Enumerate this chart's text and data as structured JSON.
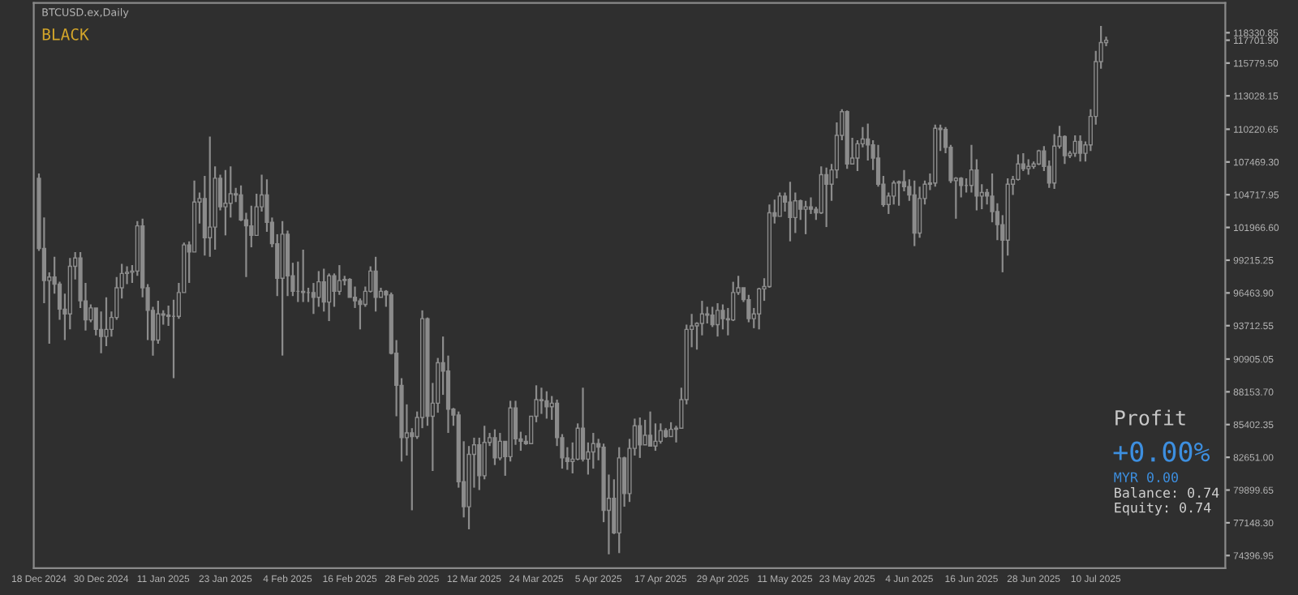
{
  "chart_data": {
    "type": "candlestick",
    "title": "BTCUSD.ex,Daily",
    "subtitle": "BLACK",
    "annotations": [
      "Profit",
      "+0.00%",
      "MYR 0.00",
      "Balance: 0.74",
      "Equity: 0.74"
    ],
    "color": "#8c8c8c",
    "grid": false,
    "xlim": [
      "2024-12-17",
      "2025-08-04"
    ],
    "xticks": [
      {
        "value": "2024-12-18",
        "label": "18 Dec 2024"
      },
      {
        "value": "2024-12-30",
        "label": "30 Dec 2024"
      },
      {
        "value": "2025-01-11",
        "label": "11 Jan 2025"
      },
      {
        "value": "2025-01-23",
        "label": "23 Jan 2025"
      },
      {
        "value": "2025-02-04",
        "label": "4 Feb 2025"
      },
      {
        "value": "2025-02-16",
        "label": "16 Feb 2025"
      },
      {
        "value": "2025-02-28",
        "label": "28 Feb 2025"
      },
      {
        "value": "2025-03-12",
        "label": "12 Mar 2025"
      },
      {
        "value": "2025-03-24",
        "label": "24 Mar 2025"
      },
      {
        "value": "2025-04-05",
        "label": "5 Apr 2025"
      },
      {
        "value": "2025-04-17",
        "label": "17 Apr 2025"
      },
      {
        "value": "2025-04-29",
        "label": "29 Apr 2025"
      },
      {
        "value": "2025-05-11",
        "label": "11 May 2025"
      },
      {
        "value": "2025-05-23",
        "label": "23 May 2025"
      },
      {
        "value": "2025-06-04",
        "label": "4 Jun 2025"
      },
      {
        "value": "2025-06-16",
        "label": "16 Jun 2025"
      },
      {
        "value": "2025-06-28",
        "label": "28 Jun 2025"
      },
      {
        "value": "2025-07-10",
        "label": "10 Jul 2025"
      }
    ],
    "ylim": [
      73330,
      120830
    ],
    "yticks": [
      {
        "value": 74396.95,
        "label": "74396.95"
      },
      {
        "value": 77148.3,
        "label": "77148.30"
      },
      {
        "value": 79899.65,
        "label": "79899.65"
      },
      {
        "value": 82651.0,
        "label": "82651.00"
      },
      {
        "value": 85402.35,
        "label": "85402.35"
      },
      {
        "value": 88153.7,
        "label": "88153.70"
      },
      {
        "value": 90905.05,
        "label": "90905.05"
      },
      {
        "value": 93712.55,
        "label": "93712.55"
      },
      {
        "value": 96463.9,
        "label": "96463.90"
      },
      {
        "value": 99215.25,
        "label": "99215.25"
      },
      {
        "value": 101966.6,
        "label": "101966.60"
      },
      {
        "value": 104717.95,
        "label": "104717.95"
      },
      {
        "value": 107469.3,
        "label": "107469.30"
      },
      {
        "value": 110220.65,
        "label": "110220.65"
      },
      {
        "value": 113028.15,
        "label": "113028.15"
      },
      {
        "value": 115779.5,
        "label": "115779.50"
      },
      {
        "value": 117701.9,
        "label": "117701.90"
      },
      {
        "value": 118330.85,
        "label": "118330.85"
      }
    ],
    "x": [
      "2024-12-18",
      "2024-12-19",
      "2024-12-20",
      "2024-12-21",
      "2024-12-22",
      "2024-12-23",
      "2024-12-24",
      "2024-12-25",
      "2024-12-26",
      "2024-12-27",
      "2024-12-28",
      "2024-12-29",
      "2024-12-30",
      "2024-12-31",
      "2025-01-01",
      "2025-01-02",
      "2025-01-03",
      "2025-01-04",
      "2025-01-05",
      "2025-01-06",
      "2025-01-07",
      "2025-01-08",
      "2025-01-09",
      "2025-01-10",
      "2025-01-11",
      "2025-01-12",
      "2025-01-13",
      "2025-01-14",
      "2025-01-15",
      "2025-01-16",
      "2025-01-17",
      "2025-01-18",
      "2025-01-19",
      "2025-01-20",
      "2025-01-21",
      "2025-01-22",
      "2025-01-23",
      "2025-01-24",
      "2025-01-25",
      "2025-01-26",
      "2025-01-27",
      "2025-01-28",
      "2025-01-29",
      "2025-01-30",
      "2025-01-31",
      "2025-02-01",
      "2025-02-02",
      "2025-02-03",
      "2025-02-04",
      "2025-02-05",
      "2025-02-06",
      "2025-02-07",
      "2025-02-08",
      "2025-02-09",
      "2025-02-10",
      "2025-02-11",
      "2025-02-12",
      "2025-02-13",
      "2025-02-14",
      "2025-02-15",
      "2025-02-16",
      "2025-02-17",
      "2025-02-18",
      "2025-02-19",
      "2025-02-20",
      "2025-02-21",
      "2025-02-22",
      "2025-02-23",
      "2025-02-24",
      "2025-02-25",
      "2025-02-26",
      "2025-02-27",
      "2025-02-28",
      "2025-03-01",
      "2025-03-02",
      "2025-03-03",
      "2025-03-04",
      "2025-03-05",
      "2025-03-06",
      "2025-03-07",
      "2025-03-08",
      "2025-03-09",
      "2025-03-10",
      "2025-03-11",
      "2025-03-12",
      "2025-03-13",
      "2025-03-14",
      "2025-03-15",
      "2025-03-16",
      "2025-03-17",
      "2025-03-18",
      "2025-03-19",
      "2025-03-20",
      "2025-03-21",
      "2025-03-22",
      "2025-03-23",
      "2025-03-24",
      "2025-03-25",
      "2025-03-26",
      "2025-03-27",
      "2025-03-28",
      "2025-03-29",
      "2025-03-30",
      "2025-03-31",
      "2025-04-01",
      "2025-04-02",
      "2025-04-03",
      "2025-04-04",
      "2025-04-05",
      "2025-04-06",
      "2025-04-07",
      "2025-04-08",
      "2025-04-09",
      "2025-04-10",
      "2025-04-11",
      "2025-04-12",
      "2025-04-13",
      "2025-04-14",
      "2025-04-15",
      "2025-04-16",
      "2025-04-17",
      "2025-04-18",
      "2025-04-19",
      "2025-04-20",
      "2025-04-21",
      "2025-04-22",
      "2025-04-23",
      "2025-04-24",
      "2025-04-25",
      "2025-04-26",
      "2025-04-27",
      "2025-04-28",
      "2025-04-29",
      "2025-04-30",
      "2025-05-01",
      "2025-05-02",
      "2025-05-03",
      "2025-05-04",
      "2025-05-05",
      "2025-05-06",
      "2025-05-07",
      "2025-05-08",
      "2025-05-09",
      "2025-05-10",
      "2025-05-11",
      "2025-05-12",
      "2025-05-13",
      "2025-05-14",
      "2025-05-15",
      "2025-05-16",
      "2025-05-17",
      "2025-05-18",
      "2025-05-19",
      "2025-05-20",
      "2025-05-21",
      "2025-05-22",
      "2025-05-23",
      "2025-05-24",
      "2025-05-25",
      "2025-05-26",
      "2025-05-27",
      "2025-05-28",
      "2025-05-29",
      "2025-05-30",
      "2025-05-31",
      "2025-06-01",
      "2025-06-02",
      "2025-06-03",
      "2025-06-04",
      "2025-06-05",
      "2025-06-06",
      "2025-06-07",
      "2025-06-08",
      "2025-06-09",
      "2025-06-10",
      "2025-06-11",
      "2025-06-12",
      "2025-06-13",
      "2025-06-14",
      "2025-06-15",
      "2025-06-16",
      "2025-06-17",
      "2025-06-18",
      "2025-06-19",
      "2025-06-20",
      "2025-06-21",
      "2025-06-22",
      "2025-06-23",
      "2025-06-24",
      "2025-06-25",
      "2025-06-26",
      "2025-06-27",
      "2025-06-28",
      "2025-06-29",
      "2025-06-30",
      "2025-07-01",
      "2025-07-02",
      "2025-07-03",
      "2025-07-04",
      "2025-07-05",
      "2025-07-06",
      "2025-07-07",
      "2025-07-08",
      "2025-07-09",
      "2025-07-10",
      "2025-07-11",
      "2025-07-12"
    ],
    "ohlc": [
      [
        106100,
        106500,
        100000,
        100200
      ],
      [
        100200,
        102800,
        95600,
        97500
      ],
      [
        97500,
        98200,
        92200,
        97800
      ],
      [
        97800,
        99500,
        96400,
        97200
      ],
      [
        97200,
        97400,
        94200,
        95100
      ],
      [
        95100,
        96400,
        92500,
        94700
      ],
      [
        94700,
        99400,
        93400,
        98700
      ],
      [
        98700,
        99900,
        97600,
        99400
      ],
      [
        99400,
        99900,
        95200,
        95800
      ],
      [
        95800,
        97300,
        93300,
        94200
      ],
      [
        94200,
        95500,
        94000,
        95200
      ],
      [
        95200,
        95200,
        92900,
        93400
      ],
      [
        93400,
        94900,
        91400,
        92800
      ],
      [
        92800,
        96100,
        92000,
        93400
      ],
      [
        93400,
        94900,
        92800,
        94400
      ],
      [
        94400,
        97800,
        94200,
        96900
      ],
      [
        96900,
        98900,
        96000,
        98100
      ],
      [
        98100,
        98700,
        97200,
        98200
      ],
      [
        98200,
        98800,
        97300,
        98300
      ],
      [
        98300,
        102500,
        97900,
        102100
      ],
      [
        102100,
        102700,
        96100,
        96900
      ],
      [
        96900,
        97200,
        92500,
        95000
      ],
      [
        95000,
        95300,
        91200,
        92500
      ],
      [
        92500,
        95800,
        92200,
        94700
      ],
      [
        94700,
        95000,
        93800,
        94600
      ],
      [
        94600,
        95400,
        93700,
        94500
      ],
      [
        94500,
        95900,
        89300,
        94500
      ],
      [
        94500,
        97300,
        94300,
        96500
      ],
      [
        96500,
        100700,
        96500,
        100500
      ],
      [
        100500,
        100800,
        97300,
        99900
      ],
      [
        99900,
        105900,
        99900,
        104100
      ],
      [
        104100,
        104900,
        102300,
        104400
      ],
      [
        104400,
        106300,
        99600,
        101100
      ],
      [
        101100,
        109600,
        99500,
        102000
      ],
      [
        102000,
        107100,
        100100,
        106100
      ],
      [
        106100,
        106400,
        103400,
        103700
      ],
      [
        103700,
        106800,
        101300,
        104000
      ],
      [
        104000,
        107100,
        102800,
        104800
      ],
      [
        104800,
        105300,
        104100,
        104700
      ],
      [
        104700,
        105500,
        102500,
        102600
      ],
      [
        102600,
        103200,
        97800,
        102100
      ],
      [
        102100,
        103800,
        100300,
        101300
      ],
      [
        101300,
        104800,
        101300,
        103700
      ],
      [
        103700,
        106400,
        103300,
        104700
      ],
      [
        104700,
        106000,
        101600,
        102400
      ],
      [
        102400,
        102800,
        100300,
        100600
      ],
      [
        100600,
        101400,
        96200,
        97700
      ],
      [
        97700,
        102500,
        91200,
        101400
      ],
      [
        101400,
        101700,
        96200,
        97900
      ],
      [
        97900,
        99000,
        96200,
        96600
      ],
      [
        96600,
        99100,
        95700,
        96600
      ],
      [
        96600,
        100100,
        95700,
        96500
      ],
      [
        96500,
        96900,
        95700,
        96500
      ],
      [
        96500,
        97300,
        94700,
        96100
      ],
      [
        96100,
        98300,
        95300,
        97400
      ],
      [
        97400,
        98500,
        94900,
        95700
      ],
      [
        95700,
        98100,
        94100,
        97900
      ],
      [
        97900,
        98100,
        95300,
        96600
      ],
      [
        96600,
        98800,
        96300,
        97500
      ],
      [
        97500,
        97900,
        97100,
        97600
      ],
      [
        97600,
        97700,
        96100,
        96100
      ],
      [
        96100,
        97000,
        95200,
        95800
      ],
      [
        95800,
        96000,
        93400,
        95500
      ],
      [
        95500,
        97000,
        95300,
        96600
      ],
      [
        96600,
        98700,
        96500,
        98300
      ],
      [
        98300,
        99500,
        94900,
        96100
      ],
      [
        96100,
        96900,
        96100,
        96600
      ],
      [
        96600,
        96700,
        95300,
        96300
      ],
      [
        96300,
        96500,
        91300,
        91400
      ],
      [
        91400,
        92500,
        86100,
        88700
      ],
      [
        88700,
        89300,
        82300,
        84300
      ],
      [
        84300,
        87100,
        82800,
        84700
      ],
      [
        84700,
        85100,
        78200,
        84400
      ],
      [
        84400,
        86500,
        84200,
        86000
      ],
      [
        86000,
        95000,
        85100,
        94300
      ],
      [
        94300,
        94400,
        85300,
        86100
      ],
      [
        86100,
        88900,
        81500,
        87200
      ],
      [
        87200,
        91000,
        86400,
        90600
      ],
      [
        90600,
        92800,
        87900,
        89900
      ],
      [
        89900,
        91200,
        84700,
        86700
      ],
      [
        86700,
        86800,
        85300,
        86200
      ],
      [
        86200,
        86500,
        80100,
        80600
      ],
      [
        80600,
        84000,
        77600,
        78500
      ],
      [
        78500,
        83600,
        76600,
        82900
      ],
      [
        82900,
        84300,
        80100,
        83700
      ],
      [
        83700,
        84300,
        79900,
        81100
      ],
      [
        81100,
        85300,
        80800,
        83900
      ],
      [
        83900,
        84700,
        83600,
        84300
      ],
      [
        84300,
        85000,
        82000,
        82600
      ],
      [
        82600,
        84700,
        82400,
        84000
      ],
      [
        84000,
        84000,
        81100,
        82700
      ],
      [
        82700,
        87400,
        82300,
        86800
      ],
      [
        86800,
        87400,
        83700,
        84200
      ],
      [
        84200,
        84800,
        83200,
        84000
      ],
      [
        84000,
        84500,
        83700,
        83800
      ],
      [
        83800,
        86100,
        83800,
        86100
      ],
      [
        86100,
        88700,
        85600,
        87500
      ],
      [
        87500,
        88500,
        86300,
        87400
      ],
      [
        87400,
        88200,
        85900,
        86900
      ],
      [
        86900,
        87800,
        85800,
        87200
      ],
      [
        87200,
        87500,
        83600,
        84300
      ],
      [
        84300,
        84600,
        81700,
        82600
      ],
      [
        82600,
        83500,
        81600,
        82300
      ],
      [
        82300,
        83900,
        81300,
        82500
      ],
      [
        82500,
        85500,
        82400,
        85100
      ],
      [
        85100,
        88500,
        82300,
        82500
      ],
      [
        82500,
        83900,
        81200,
        83100
      ],
      [
        83100,
        84700,
        81700,
        83800
      ],
      [
        83800,
        84200,
        82400,
        83500
      ],
      [
        83500,
        83800,
        77200,
        78200
      ],
      [
        78200,
        81200,
        74500,
        79200
      ],
      [
        79200,
        80800,
        76200,
        76300
      ],
      [
        76300,
        83500,
        74600,
        82600
      ],
      [
        82600,
        82700,
        78500,
        79600
      ],
      [
        79600,
        84200,
        78900,
        83400
      ],
      [
        83400,
        85900,
        82800,
        85300
      ],
      [
        85300,
        86000,
        82600,
        83700
      ],
      [
        83700,
        85800,
        83700,
        84500
      ],
      [
        84500,
        86500,
        83600,
        83600
      ],
      [
        83600,
        85500,
        83200,
        84000
      ],
      [
        84000,
        85500,
        83800,
        84900
      ],
      [
        84900,
        85100,
        84300,
        84400
      ],
      [
        84400,
        85600,
        84400,
        85000
      ],
      [
        85000,
        85300,
        83900,
        85100
      ],
      [
        85100,
        88500,
        85100,
        87500
      ],
      [
        87500,
        93800,
        87100,
        93400
      ],
      [
        93400,
        94700,
        91900,
        93700
      ],
      [
        93700,
        94000,
        91700,
        93900
      ],
      [
        93900,
        95800,
        92900,
        94700
      ],
      [
        94700,
        95300,
        93900,
        94600
      ],
      [
        94600,
        95300,
        93600,
        93800
      ],
      [
        93800,
        95600,
        92800,
        95000
      ],
      [
        95000,
        95500,
        93400,
        94300
      ],
      [
        94300,
        95200,
        92900,
        94200
      ],
      [
        94200,
        97400,
        94100,
        96500
      ],
      [
        96500,
        97900,
        96300,
        96900
      ],
      [
        96900,
        96900,
        95700,
        95900
      ],
      [
        95900,
        96300,
        94000,
        94300
      ],
      [
        94300,
        95200,
        93500,
        94700
      ],
      [
        94700,
        96900,
        93400,
        96800
      ],
      [
        96800,
        97700,
        95800,
        97000
      ],
      [
        97000,
        103900,
        96900,
        103200
      ],
      [
        103200,
        104300,
        102300,
        102900
      ],
      [
        102900,
        104900,
        102900,
        104600
      ],
      [
        104600,
        104900,
        103300,
        104100
      ],
      [
        104100,
        105800,
        100800,
        102800
      ],
      [
        102800,
        104900,
        101500,
        104200
      ],
      [
        104200,
        104300,
        102600,
        103500
      ],
      [
        103500,
        104200,
        101400,
        103700
      ],
      [
        103700,
        104500,
        103100,
        103500
      ],
      [
        103500,
        103700,
        102600,
        103200
      ],
      [
        103200,
        107100,
        103100,
        106400
      ],
      [
        106400,
        107000,
        102000,
        105600
      ],
      [
        105600,
        107300,
        104200,
        106800
      ],
      [
        106800,
        110800,
        106100,
        109700
      ],
      [
        109700,
        111900,
        109300,
        111700
      ],
      [
        111700,
        111800,
        106900,
        107300
      ],
      [
        107300,
        109500,
        107300,
        107800
      ],
      [
        107800,
        109300,
        106700,
        109000
      ],
      [
        109000,
        110400,
        108700,
        109400
      ],
      [
        109400,
        110700,
        107600,
        108900
      ],
      [
        108900,
        109300,
        106800,
        107800
      ],
      [
        107800,
        108900,
        105400,
        105600
      ],
      [
        105600,
        106300,
        103700,
        103900
      ],
      [
        103900,
        104900,
        103100,
        104600
      ],
      [
        104600,
        105900,
        103900,
        105700
      ],
      [
        105700,
        105900,
        103800,
        105800
      ],
      [
        105800,
        106800,
        105000,
        105400
      ],
      [
        105400,
        106000,
        104200,
        104700
      ],
      [
        104700,
        105900,
        100400,
        101500
      ],
      [
        101500,
        105400,
        101100,
        104400
      ],
      [
        104400,
        105900,
        103900,
        105600
      ],
      [
        105600,
        106500,
        105100,
        105700
      ],
      [
        105700,
        110600,
        105400,
        110300
      ],
      [
        110300,
        110600,
        108400,
        110200
      ],
      [
        110200,
        110400,
        108200,
        108700
      ],
      [
        108700,
        108900,
        105700,
        105900
      ],
      [
        105900,
        106200,
        102700,
        106100
      ],
      [
        106100,
        106200,
        104500,
        105500
      ],
      [
        105500,
        106100,
        104900,
        105500
      ],
      [
        105500,
        108900,
        104900,
        106800
      ],
      [
        106800,
        107700,
        103400,
        104600
      ],
      [
        104600,
        105600,
        103500,
        104900
      ],
      [
        104900,
        105200,
        103900,
        104600
      ],
      [
        104600,
        106500,
        102400,
        103300
      ],
      [
        103300,
        104000,
        100900,
        102200
      ],
      [
        102200,
        103000,
        98200,
        100900
      ],
      [
        100900,
        106100,
        99600,
        105600
      ],
      [
        105600,
        106300,
        104700,
        106000
      ],
      [
        106000,
        108100,
        105900,
        107300
      ],
      [
        107300,
        108200,
        106700,
        106900
      ],
      [
        106900,
        107700,
        106400,
        107100
      ],
      [
        107100,
        107500,
        106900,
        107300
      ],
      [
        107300,
        108500,
        107200,
        108400
      ],
      [
        108400,
        108800,
        106700,
        107100
      ],
      [
        107100,
        107600,
        105300,
        105700
      ],
      [
        105700,
        109800,
        105200,
        108800
      ],
      [
        108800,
        110500,
        108600,
        109600
      ],
      [
        109600,
        109700,
        107300,
        108000
      ],
      [
        108000,
        108400,
        107800,
        108200
      ],
      [
        108200,
        109700,
        107900,
        109200
      ],
      [
        109200,
        109700,
        107500,
        108200
      ],
      [
        108200,
        109200,
        107500,
        108900
      ],
      [
        108900,
        111900,
        108400,
        111300
      ],
      [
        111300,
        116800,
        110600,
        115900
      ],
      [
        115900,
        118900,
        115300,
        117500
      ],
      [
        117500,
        118000,
        117200,
        117700
      ]
    ]
  }
}
